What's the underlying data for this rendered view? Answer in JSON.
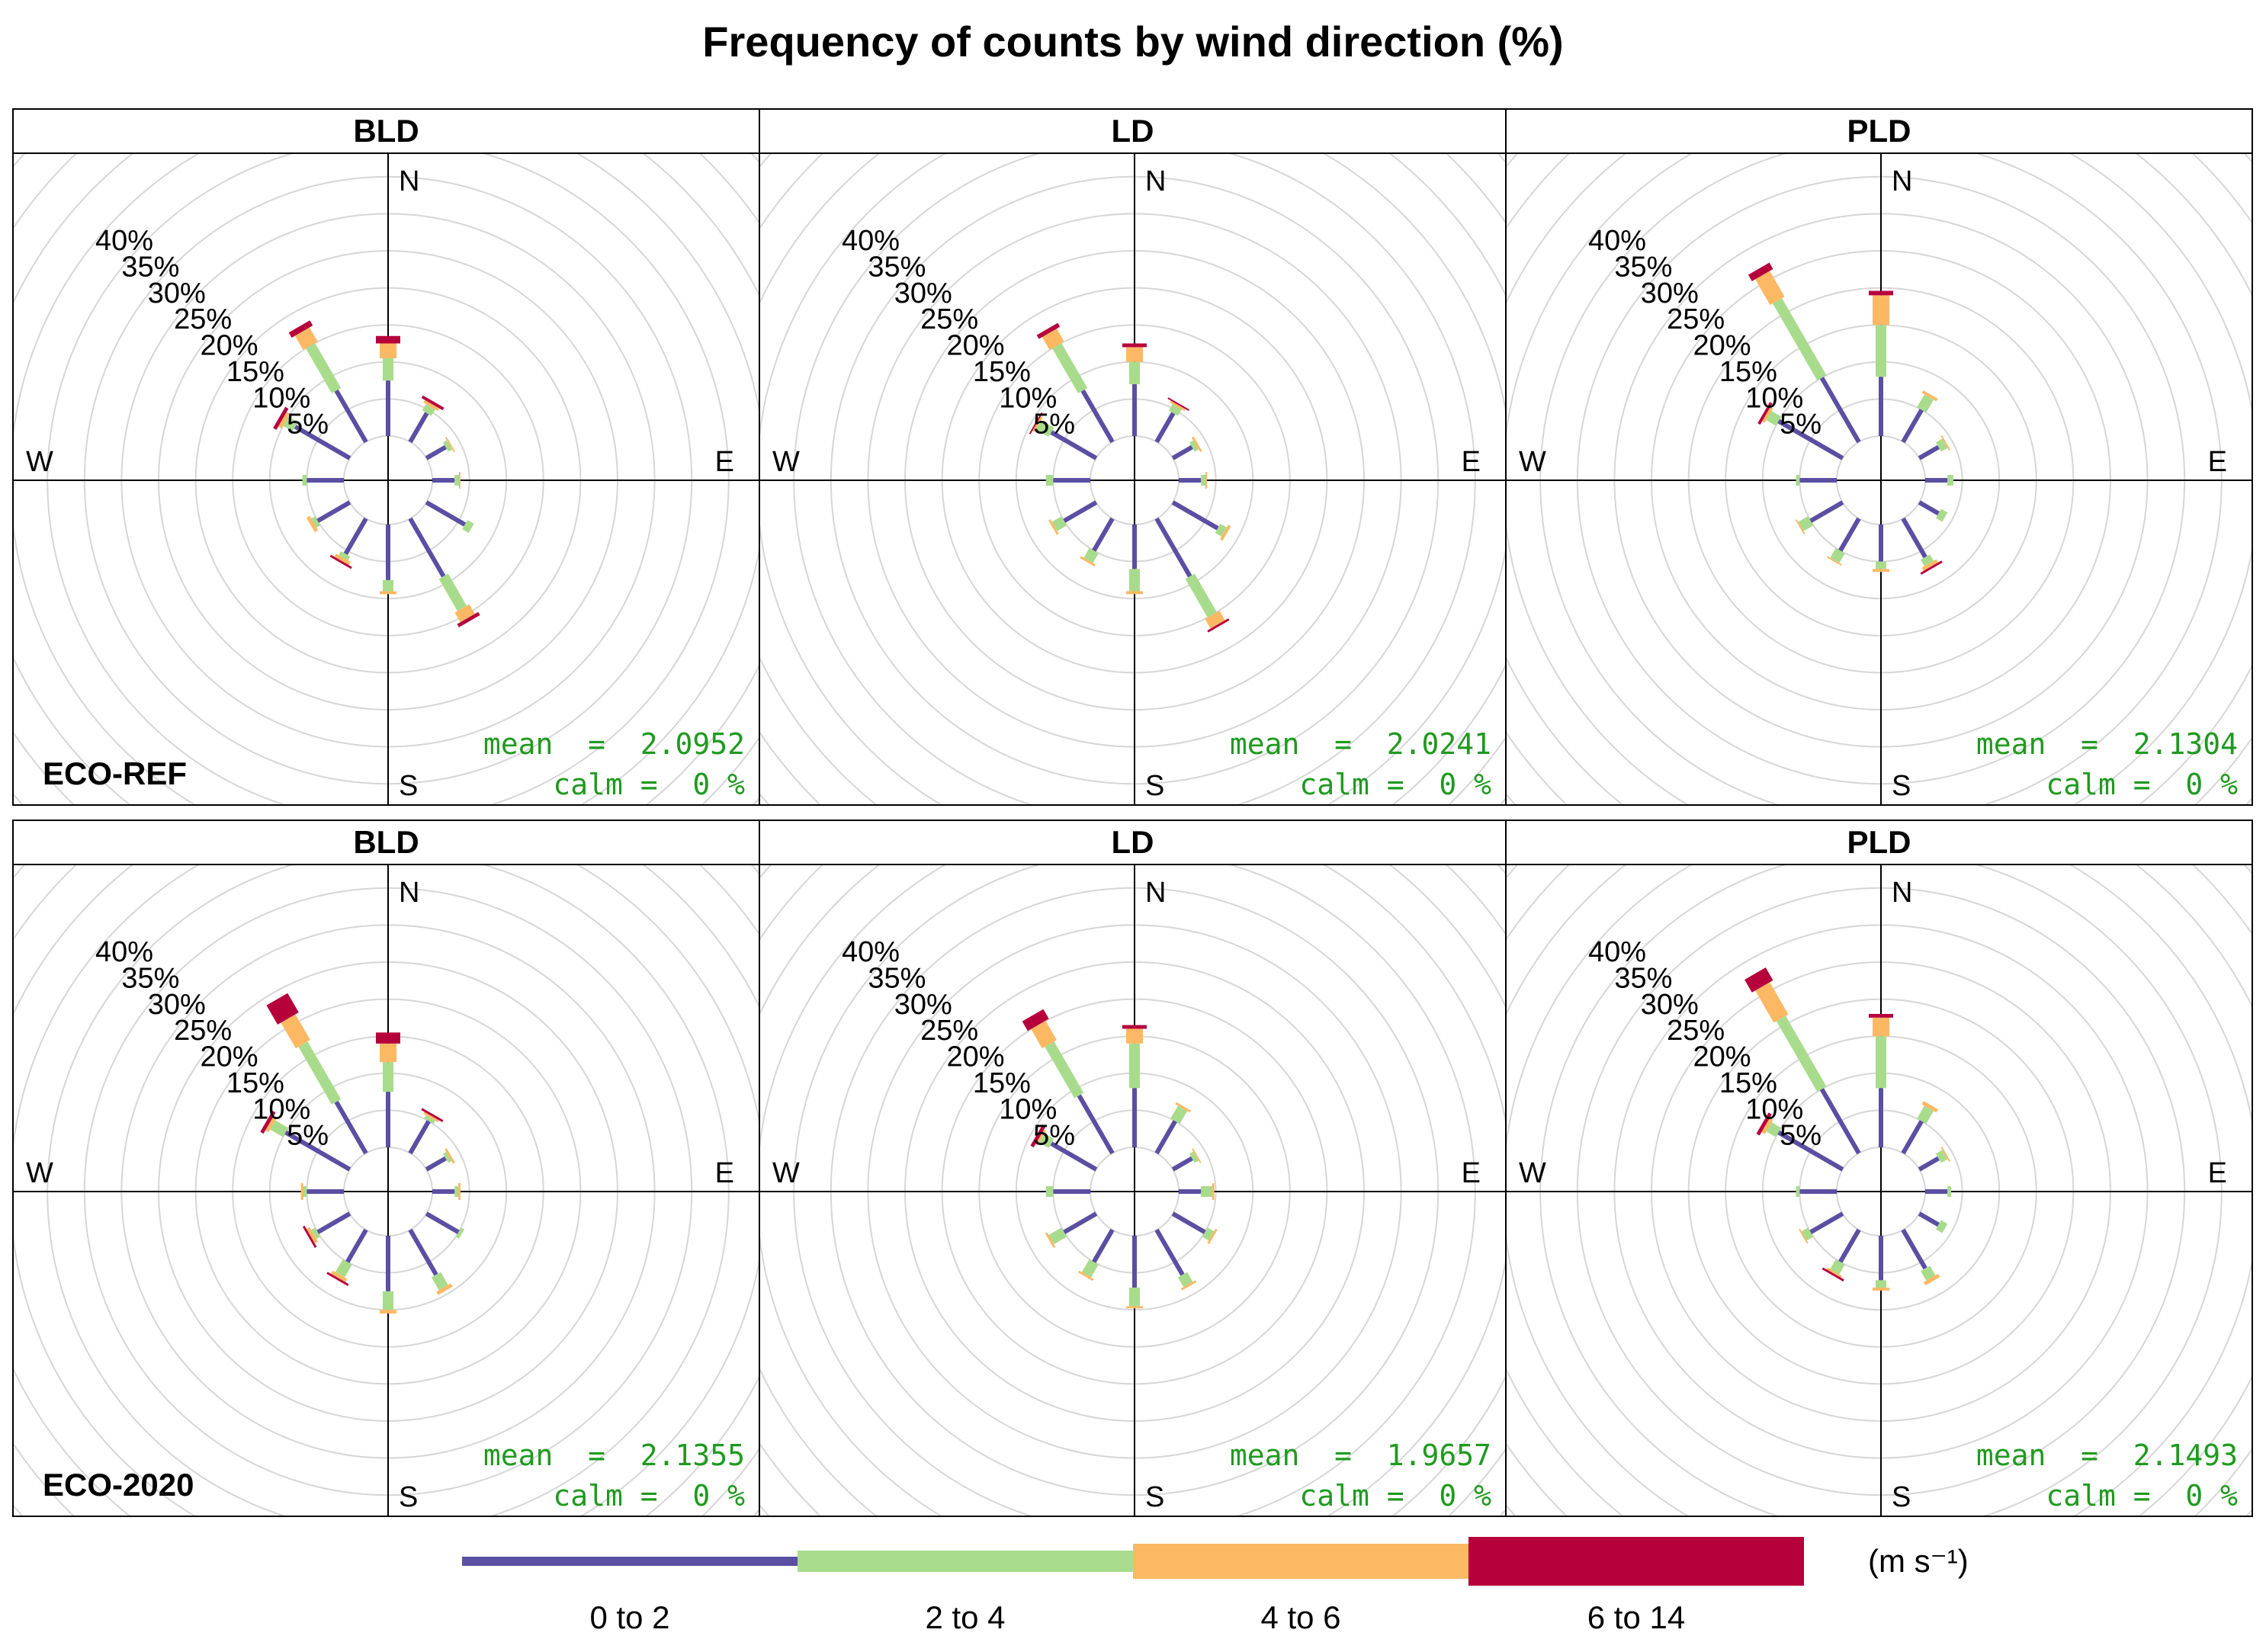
{
  "title": "Frequency of counts by wind direction (%)",
  "rows": [
    {
      "label": "ECO-REF"
    },
    {
      "label": "ECO-2020"
    }
  ],
  "compass": {
    "n": "N",
    "e": "E",
    "s": "S",
    "w": "W"
  },
  "ring_labels": [
    "5%",
    "10%",
    "15%",
    "20%",
    "25%",
    "30%",
    "35%",
    "40%"
  ],
  "stat_labels": {
    "mean": "mean",
    "calm": "calm"
  },
  "legend": {
    "unit": "(m s⁻¹)",
    "bins": [
      {
        "label": "0 to 2",
        "color": "#5a4fa2"
      },
      {
        "label": "2 to 4",
        "color": "#a8dc8c"
      },
      {
        "label": "4 to 6",
        "color": "#fdb863"
      },
      {
        "label": "6 to 14",
        "color": "#b5003c"
      }
    ]
  },
  "chart_data": [
    {
      "type": "windrose",
      "row": "ECO-REF",
      "title": "BLD",
      "mean": "mean  =  2.0952",
      "calm": "calm =  0 %",
      "ylim": [
        0,
        40
      ],
      "directions": [
        0,
        30,
        60,
        90,
        120,
        150,
        180,
        210,
        240,
        270,
        300,
        330
      ],
      "series": [
        {
          "name": "0 to 2",
          "values": [
            7.5,
            4.5,
            3,
            3,
            6,
            9,
            7.5,
            5.5,
            5,
            5,
            8.5,
            8
          ]
        },
        {
          "name": "2 to 4",
          "values": [
            3,
            1,
            0.6,
            0.6,
            1,
            5,
            1.5,
            0.6,
            0.6,
            0.6,
            1.5,
            7
          ]
        },
        {
          "name": "4 to 6",
          "values": [
            2,
            0.4,
            0.2,
            0.2,
            0,
            1.5,
            0.4,
            0.5,
            0.5,
            0,
            0.5,
            2.2
          ]
        },
        {
          "name": "6 to 14",
          "values": [
            1,
            0.4,
            0,
            0,
            0,
            0.5,
            0,
            0.3,
            0,
            0,
            0.5,
            0.8
          ]
        }
      ]
    },
    {
      "type": "windrose",
      "row": "ECO-REF",
      "title": "LD",
      "mean": "mean  =  2.0241",
      "calm": "calm =  0 %",
      "ylim": [
        0,
        40
      ],
      "directions": [
        0,
        30,
        60,
        90,
        120,
        150,
        180,
        210,
        240,
        270,
        300,
        330
      ],
      "series": [
        {
          "name": "0 to 2",
          "values": [
            7,
            4.5,
            3,
            3,
            7,
            9,
            6,
            5,
            5,
            5,
            7,
            8
          ]
        },
        {
          "name": "2 to 4",
          "values": [
            3,
            1,
            0.6,
            0.6,
            1,
            6,
            3,
            1.5,
            1.5,
            1,
            2,
            7
          ]
        },
        {
          "name": "4 to 6",
          "values": [
            2,
            0.3,
            0.3,
            0.2,
            0.4,
            1.5,
            0.4,
            0.3,
            0.3,
            0,
            0.3,
            2
          ]
        },
        {
          "name": "6 to 14",
          "values": [
            0.5,
            0.2,
            0,
            0,
            0,
            0.3,
            0,
            0,
            0,
            0,
            0.2,
            0.6
          ]
        }
      ]
    },
    {
      "type": "windrose",
      "row": "ECO-REF",
      "title": "PLD",
      "mean": "mean  =  2.1304",
      "calm": "calm =  0 %",
      "ylim": [
        0,
        40
      ],
      "directions": [
        0,
        30,
        60,
        90,
        120,
        150,
        180,
        210,
        240,
        270,
        300,
        330
      ],
      "series": [
        {
          "name": "0 to 2",
          "values": [
            8,
            5,
            3,
            3,
            3,
            6,
            5,
            5,
            5,
            5,
            10,
            10
          ]
        },
        {
          "name": "2 to 4",
          "values": [
            7,
            2,
            1,
            0.8,
            1,
            1,
            1,
            1.5,
            1.5,
            0.5,
            1.5,
            12
          ]
        },
        {
          "name": "4 to 6",
          "values": [
            4,
            0.4,
            0.2,
            0,
            0,
            0.5,
            0.4,
            0.2,
            0.2,
            0,
            0.4,
            4
          ]
        },
        {
          "name": "6 to 14",
          "values": [
            0.6,
            0,
            0,
            0,
            0,
            0.3,
            0,
            0,
            0,
            0,
            0.4,
            1
          ]
        }
      ]
    },
    {
      "type": "windrose",
      "row": "ECO-2020",
      "title": "BLD",
      "mean": "mean  =  2.1355",
      "calm": "calm =  0 %",
      "ylim": [
        0,
        40
      ],
      "directions": [
        0,
        30,
        60,
        90,
        120,
        150,
        180,
        210,
        240,
        270,
        300,
        330
      ],
      "series": [
        {
          "name": "0 to 2",
          "values": [
            7.5,
            5,
            3,
            3,
            5,
            7,
            7.5,
            5,
            5,
            5,
            10,
            8
          ]
        },
        {
          "name": "2 to 4",
          "values": [
            4,
            0.5,
            0.5,
            0.5,
            0.5,
            2,
            2.5,
            2,
            0.6,
            0.5,
            2,
            9
          ]
        },
        {
          "name": "4 to 6",
          "values": [
            2.5,
            0.3,
            0.3,
            0.3,
            0,
            0.5,
            0.5,
            0.5,
            0.5,
            0.3,
            0.5,
            4
          ]
        },
        {
          "name": "6 to 14",
          "values": [
            1.5,
            0.3,
            0,
            0,
            0,
            0,
            0,
            0.3,
            0.3,
            0,
            0.5,
            3
          ]
        }
      ]
    },
    {
      "type": "windrose",
      "row": "ECO-2020",
      "title": "LD",
      "mean": "mean  =  1.9657",
      "calm": "calm =  0 %",
      "ylim": [
        0,
        40
      ],
      "directions": [
        0,
        30,
        60,
        90,
        120,
        150,
        180,
        210,
        240,
        270,
        300,
        330
      ],
      "series": [
        {
          "name": "0 to 2",
          "values": [
            8,
            5,
            3,
            3,
            5,
            7,
            7,
            5,
            5,
            5,
            7,
            9
          ]
        },
        {
          "name": "2 to 4",
          "values": [
            6,
            2,
            0.6,
            1.5,
            1,
            1.5,
            2.5,
            2,
            2,
            1,
            1.5,
            8
          ]
        },
        {
          "name": "4 to 6",
          "values": [
            2,
            0.3,
            0.2,
            0.3,
            0.3,
            0.3,
            0.3,
            0.3,
            0.3,
            0,
            0.3,
            3
          ]
        },
        {
          "name": "6 to 14",
          "values": [
            0.5,
            0,
            0,
            0,
            0,
            0,
            0,
            0,
            0,
            0,
            0.5,
            1.5
          ]
        }
      ]
    },
    {
      "type": "windrose",
      "row": "ECO-2020",
      "title": "PLD",
      "mean": "mean  =  2.1493",
      "calm": "calm =  0 %",
      "ylim": [
        0,
        40
      ],
      "directions": [
        0,
        30,
        60,
        90,
        120,
        150,
        180,
        210,
        240,
        270,
        300,
        330
      ],
      "series": [
        {
          "name": "0 to 2",
          "values": [
            8,
            5,
            3,
            3,
            3,
            6,
            6,
            5,
            5,
            5,
            10,
            10
          ]
        },
        {
          "name": "2 to 4",
          "values": [
            7,
            2,
            1,
            0.5,
            1,
            1.5,
            1,
            1.5,
            1,
            0.5,
            1.5,
            11
          ]
        },
        {
          "name": "4 to 6",
          "values": [
            2.5,
            0.5,
            0.2,
            0,
            0,
            0.5,
            0.4,
            0.3,
            0.2,
            0,
            0.5,
            5
          ]
        },
        {
          "name": "6 to 14",
          "values": [
            0.5,
            0,
            0,
            0,
            0,
            0,
            0,
            0.3,
            0,
            0,
            0.5,
            2
          ]
        }
      ]
    }
  ]
}
